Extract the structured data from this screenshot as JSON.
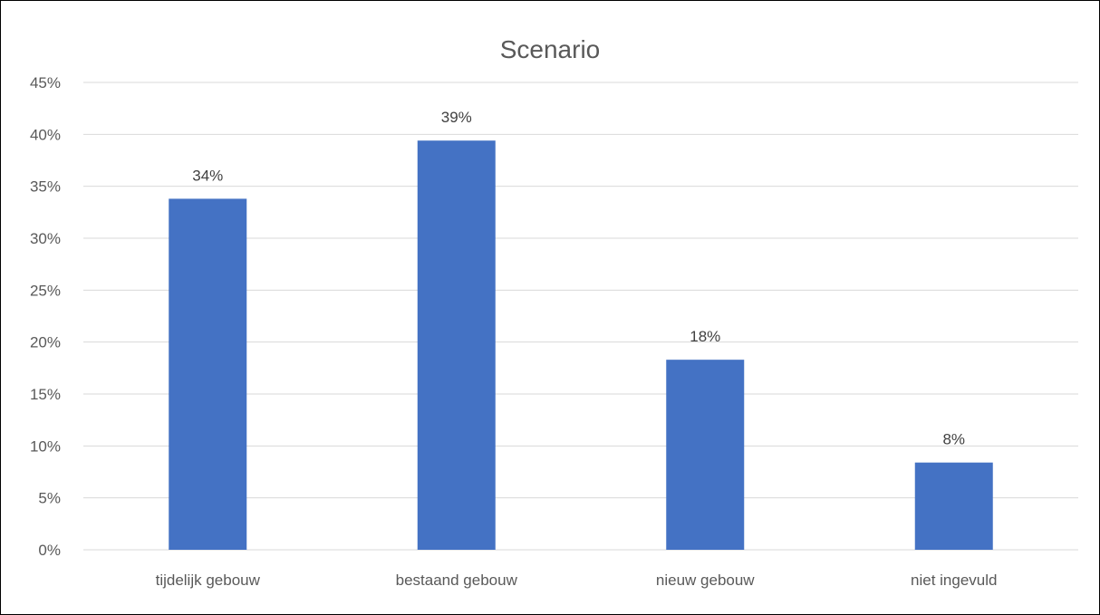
{
  "chart_data": {
    "type": "bar",
    "title": "Scenario",
    "xlabel": "",
    "ylabel": "",
    "categories": [
      "tijdelijk gebouw",
      "bestaand gebouw",
      "nieuw gebouw",
      "niet ingevuld"
    ],
    "values": [
      0.338,
      0.394,
      0.183,
      0.084
    ],
    "data_labels": [
      "34%",
      "39%",
      "18%",
      "8%"
    ],
    "ylim": [
      0,
      0.45
    ],
    "yticks": [
      0,
      0.05,
      0.1,
      0.15,
      0.2,
      0.25,
      0.3,
      0.35,
      0.4,
      0.45
    ],
    "ytick_labels": [
      "0%",
      "5%",
      "10%",
      "15%",
      "20%",
      "25%",
      "30%",
      "35%",
      "40%",
      "45%"
    ],
    "grid": true,
    "legend": "none",
    "colors": {
      "bar": "#4472c4",
      "grid": "#d9d9d9",
      "text": "#595959"
    }
  }
}
